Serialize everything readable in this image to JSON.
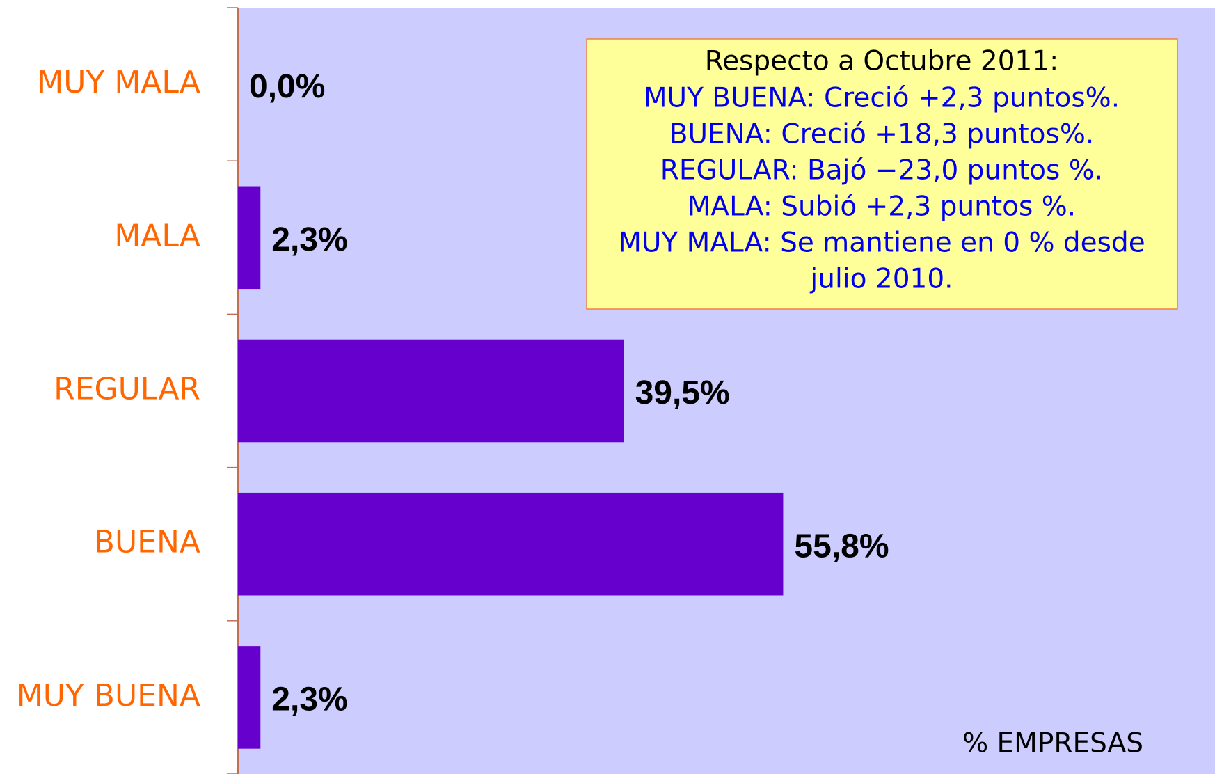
{
  "chart_data": {
    "type": "bar",
    "orientation": "horizontal",
    "categories": [
      "MUY MALA",
      "MALA",
      "REGULAR",
      "BUENA",
      "MUY BUENA"
    ],
    "values": [
      0.0,
      2.3,
      39.5,
      55.8,
      2.3
    ],
    "value_labels": [
      "0,0%",
      "2,3%",
      "39,5%",
      "55,8%",
      "2,3%"
    ],
    "color": "#6600cc",
    "xlim": [
      0,
      100
    ],
    "x_label": "% EMPRESAS",
    "annotation": {
      "title": "Respecto a Octubre 2011:",
      "lines": [
        "MUY BUENA: Creció +2,3 puntos%.",
        "BUENA: Creció +18,3 puntos%.",
        "REGULAR: Bajó −23,0 puntos %.",
        "MALA: Subió +2,3 puntos %.",
        "MUY MALA: Se mantiene en 0 % desde",
        "julio 2010."
      ]
    }
  }
}
